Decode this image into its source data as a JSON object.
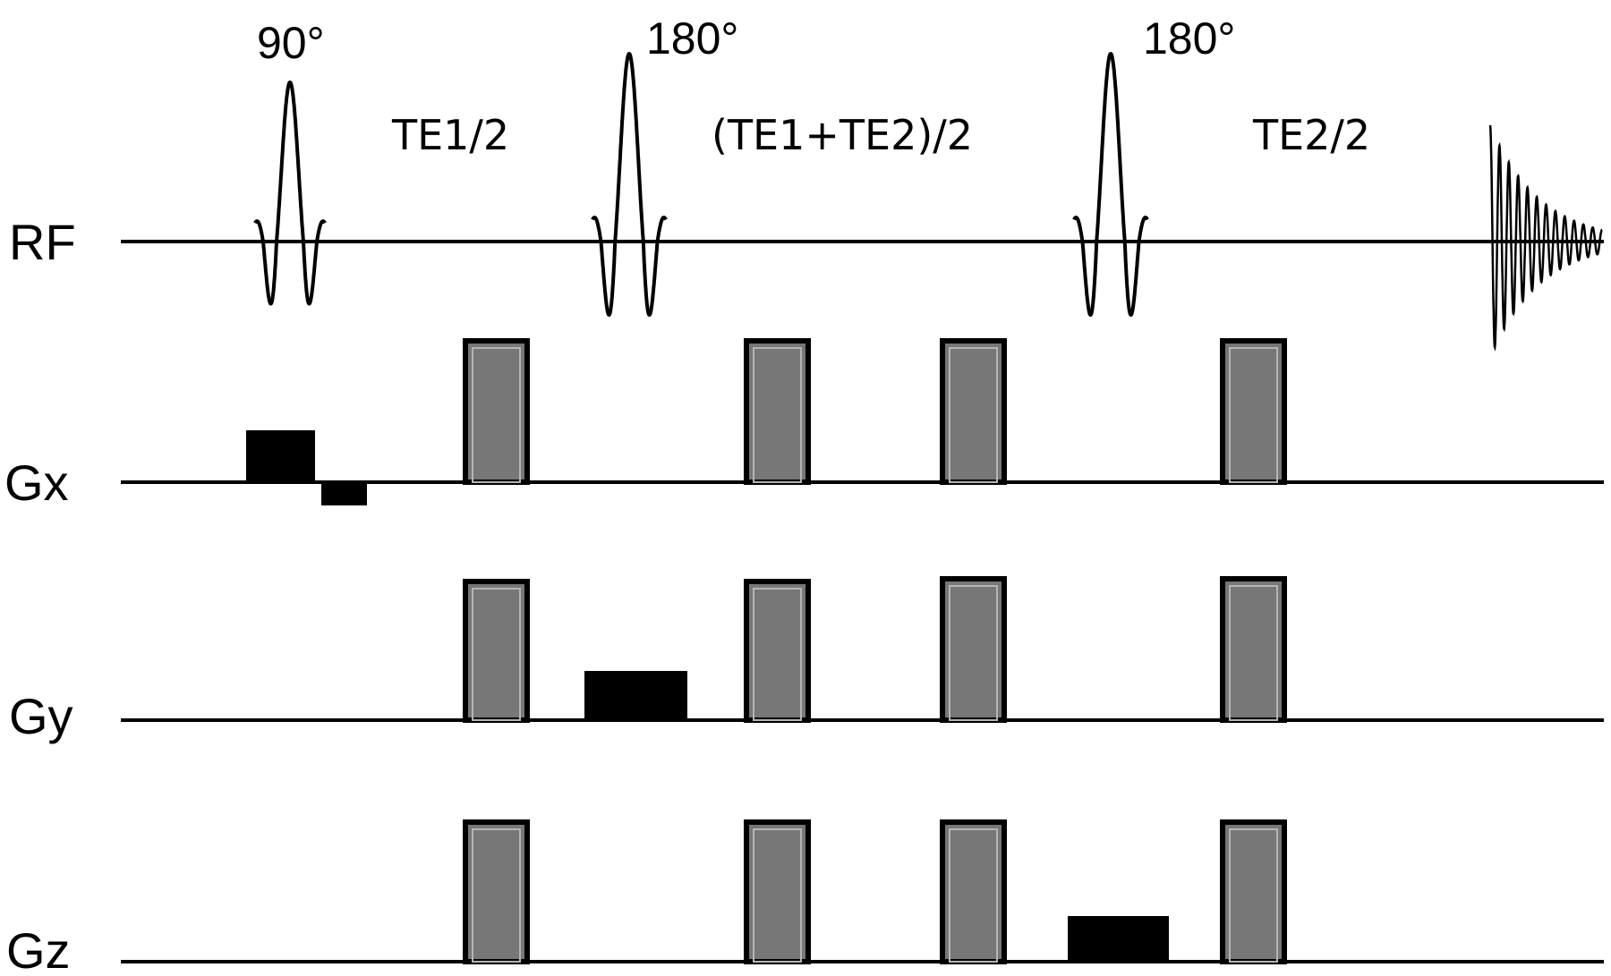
{
  "rows": {
    "rf": "RF",
    "gx": "Gx",
    "gy": "Gy",
    "gz": "Gz"
  },
  "pulses": {
    "p90": "90°",
    "p180a": "180°",
    "p180b": "180°"
  },
  "intervals": {
    "i1": "TE1/2",
    "i2": "(TE1+TE2)/2",
    "i3": "TE2/2"
  },
  "colors": {
    "crusher_fill": "#777777",
    "solid_lobe": "#000000",
    "line": "#000000",
    "background": "#ffffff"
  }
}
